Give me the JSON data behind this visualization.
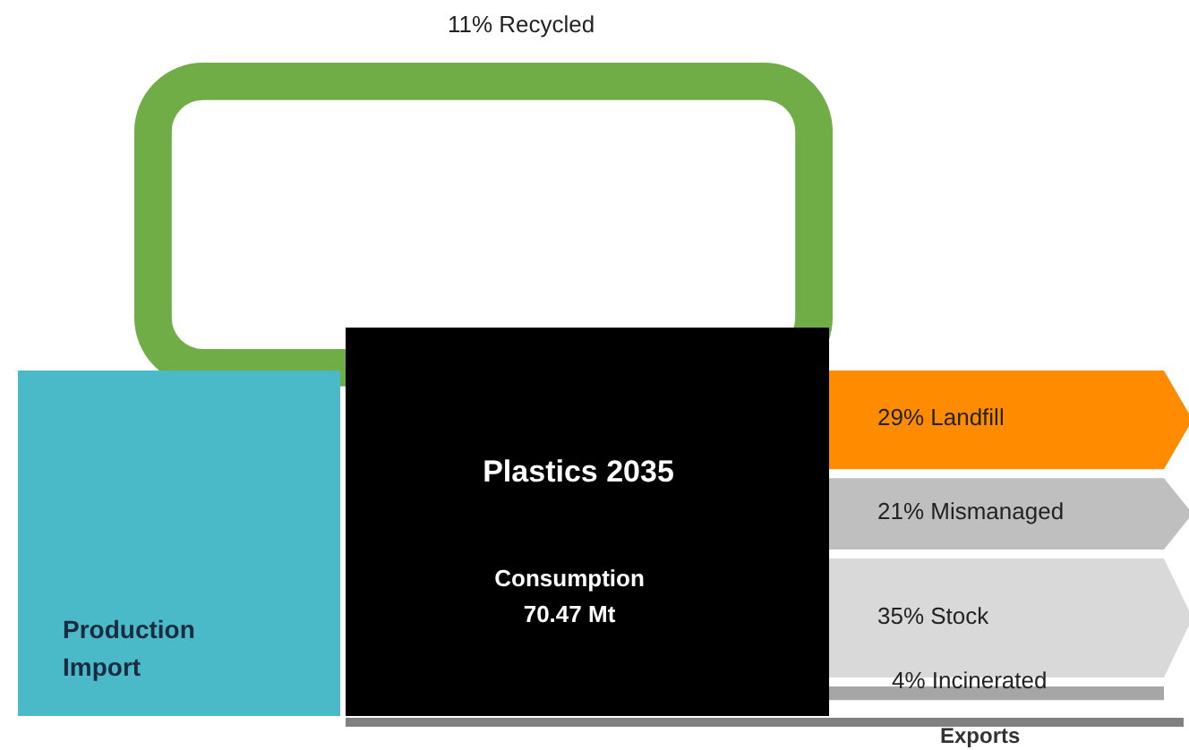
{
  "chart_data": {
    "type": "other",
    "title": "Plastics 2035",
    "subtitle": "Consumption\n70.47 Mt",
    "categories": [
      "Recycled",
      "Landfill",
      "Mismanaged",
      "Stock",
      "Incinerated",
      "Exports"
    ],
    "values": [
      11,
      29,
      21,
      35,
      4,
      null
    ],
    "value_labels": [
      "11%",
      "29%",
      "21%",
      "35%",
      "4%",
      null
    ],
    "colors": [
      "#70ad47",
      "#ff8c00",
      "#bfbfbf",
      "#d9d9d9",
      "#a6a6a6",
      "#808080"
    ],
    "annotations": [
      "Production\nImport"
    ]
  }
}
